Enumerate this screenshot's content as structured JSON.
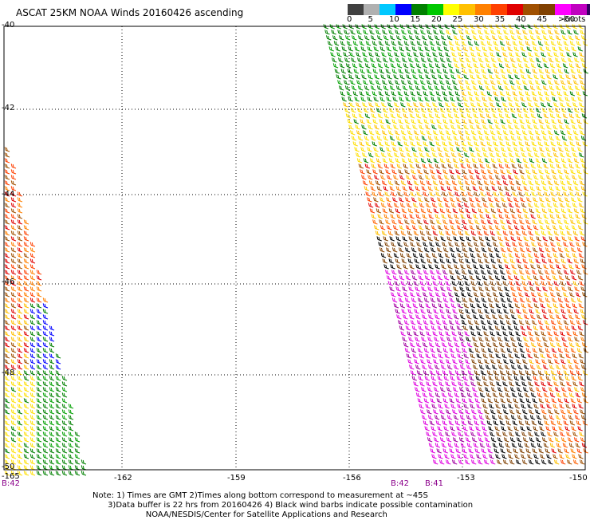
{
  "title": "ASCAT 25KM NOAA Winds 20160426 ascending",
  "legend": {
    "colors": [
      "#404040",
      "#b0b0b0",
      "#00c8ff",
      "#0000ff",
      "#008000",
      "#00c800",
      "#ffff00",
      "#ffc000",
      "#ff8000",
      "#ff4000",
      "#e00000",
      "#a05000",
      "#804000",
      "#ff00ff",
      "#c000c0",
      "#300060"
    ],
    "labels": [
      "0",
      "5",
      "10",
      "15",
      "20",
      "25",
      "30",
      "35",
      "40",
      "45",
      ">50"
    ],
    "unit": "knots"
  },
  "map": {
    "lat_labels": [
      "-40",
      "-42",
      "-44",
      "-46",
      "-48",
      "-50"
    ],
    "lon_labels": [
      "-165",
      "-162",
      "-159",
      "-156",
      "-153",
      "-150"
    ],
    "pass_labels": [
      "B:42",
      "B:42",
      "B:41"
    ]
  },
  "notes": [
    "Note: 1) Times are GMT 2)Times along bottom correspond to measurement at ~45S",
    "      3)Data buffer is 22 hrs from 20160426 4) Black wind barbs indicate possible contamination",
    "                     NOAA/NESDIS/Center for Satellite Applications and Research"
  ]
}
